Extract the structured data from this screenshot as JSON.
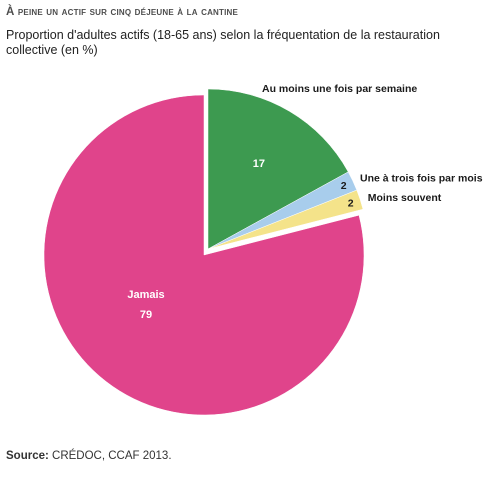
{
  "header": {
    "title": "À peine un actif sur cinq déjeune à la cantine",
    "subtitle": "Proportion d'adultes actifs (18-65 ans) selon la fréquentation de la restauration collective (en %)"
  },
  "source": {
    "label": "Source:",
    "text": " CRÉDOC, CCAF 2013."
  },
  "chart_data": {
    "type": "pie",
    "unit": "%",
    "slices": [
      {
        "name": "Au moins une fois par semaine",
        "value": 17,
        "value_label": "17",
        "color": "#3d9a50",
        "exploded": true
      },
      {
        "name": "Une à trois fois par mois",
        "value": 2,
        "value_label": "2",
        "color": "#a8cdec",
        "exploded": true
      },
      {
        "name": "Moins souvent",
        "value": 2,
        "value_label": "2",
        "color": "#f4e38a",
        "exploded": true
      },
      {
        "name": "Jamais",
        "value": 79,
        "value_label": "79",
        "color": "#e0448b",
        "exploded": false
      }
    ]
  }
}
